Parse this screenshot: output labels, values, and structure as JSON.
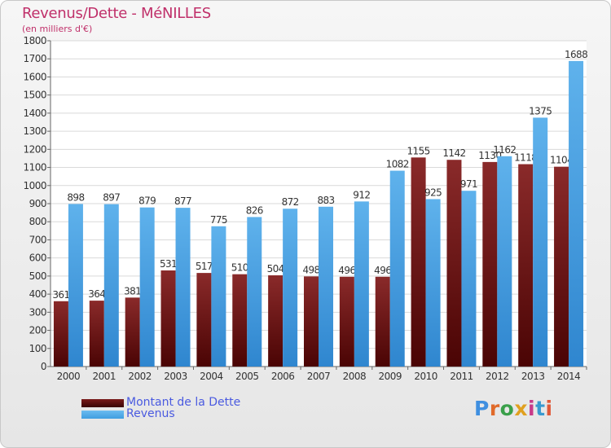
{
  "header": {
    "title": "Revenus/Dette - MéNILLES",
    "subtitle": "(en milliers d'€)"
  },
  "legend": {
    "items": [
      {
        "label": "Montant de la Dette",
        "color": "#7a1a1a"
      },
      {
        "label": "Revenus",
        "color": "#3f9de0"
      }
    ]
  },
  "logo": {
    "text": "Proxiti"
  },
  "chart_data": {
    "type": "bar",
    "title": "Revenus/Dette - MéNILLES",
    "subtitle": "(en milliers d'€)",
    "categories": [
      "2000",
      "2001",
      "2002",
      "2003",
      "2004",
      "2005",
      "2006",
      "2007",
      "2008",
      "2009",
      "2010",
      "2011",
      "2012",
      "2013",
      "2014"
    ],
    "series": [
      {
        "name": "Montant de la Dette",
        "color": "#7a1a1a",
        "values": [
          361,
          364,
          381,
          531,
          517,
          510,
          504,
          498,
          496,
          496,
          1155,
          1142,
          1130,
          1118,
          1104
        ],
        "labels": [
          "361",
          "364",
          "381",
          "531",
          "517",
          "510",
          "504",
          "498",
          "496",
          "496",
          "1155",
          "1142",
          "1130",
          "1118",
          "1104"
        ]
      },
      {
        "name": "Revenus",
        "color": "#3f9de0",
        "values": [
          898,
          897,
          879,
          877,
          775,
          826,
          872,
          883,
          912,
          1082,
          925,
          971,
          1162,
          1375,
          1688
        ],
        "labels": [
          "898",
          "897",
          "879",
          "877",
          "775",
          "826",
          "872",
          "883",
          "912",
          "1082",
          "925",
          "971",
          "1162",
          "1375",
          "1688"
        ]
      }
    ],
    "ylim": [
      0,
      1800
    ],
    "yticks": [
      0,
      100,
      200,
      300,
      400,
      500,
      600,
      700,
      800,
      900,
      1000,
      1100,
      1200,
      1300,
      1400,
      1500,
      1600,
      1700,
      1800
    ],
    "grid": true,
    "legend_position": "bottom-left"
  }
}
